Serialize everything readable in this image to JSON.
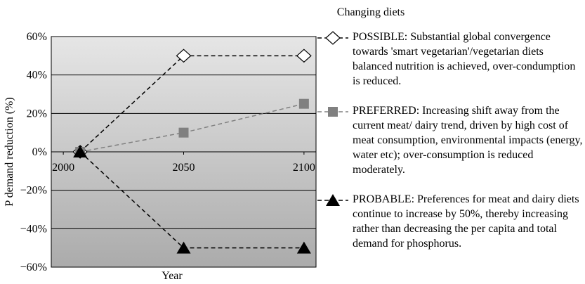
{
  "chart_data": {
    "type": "line",
    "title": "Changing diets",
    "x_label": "Year",
    "y_label": "P demand reduction (%)",
    "x": [
      2007,
      2050,
      2100
    ],
    "xlim": [
      1995,
      2105
    ],
    "xticks": [
      2000,
      2050,
      2100
    ],
    "ylim": [
      -60,
      60
    ],
    "yticks": [
      {
        "value": -60,
        "label": "−60%"
      },
      {
        "value": -40,
        "label": "−40%"
      },
      {
        "value": -20,
        "label": "−20%"
      },
      {
        "value": 0,
        "label": "0%"
      },
      {
        "value": 20,
        "label": "20%"
      },
      {
        "value": 40,
        "label": "40%"
      },
      {
        "value": 60,
        "label": "60%"
      }
    ],
    "grid": true,
    "series": [
      {
        "name": "POSSIBLE: Substantial global convergence towards 'smart vegetarian'/vegetarian diets balanced nutrition is achieved, over-condumption is reduced.",
        "color": "#000000",
        "marker": "diamond",
        "values": [
          0,
          50,
          50
        ]
      },
      {
        "name": "PREFERRED: Increasing shift away from the current meat/ dairy trend, driven by high cost of meat consumption, environmental impacts (energy, water etc); over-consumption is reduced moderately.",
        "color": "#808080",
        "marker": "square",
        "values": [
          0,
          10,
          25
        ]
      },
      {
        "name": "PROBABLE: Preferences for meat and dairy diets continue to increase by 50%, thereby increasing rather than decreasing the per capita and total demand for phosphorus.",
        "color": "#000000",
        "marker": "triangle",
        "values": [
          0,
          -50,
          -50
        ]
      }
    ]
  }
}
